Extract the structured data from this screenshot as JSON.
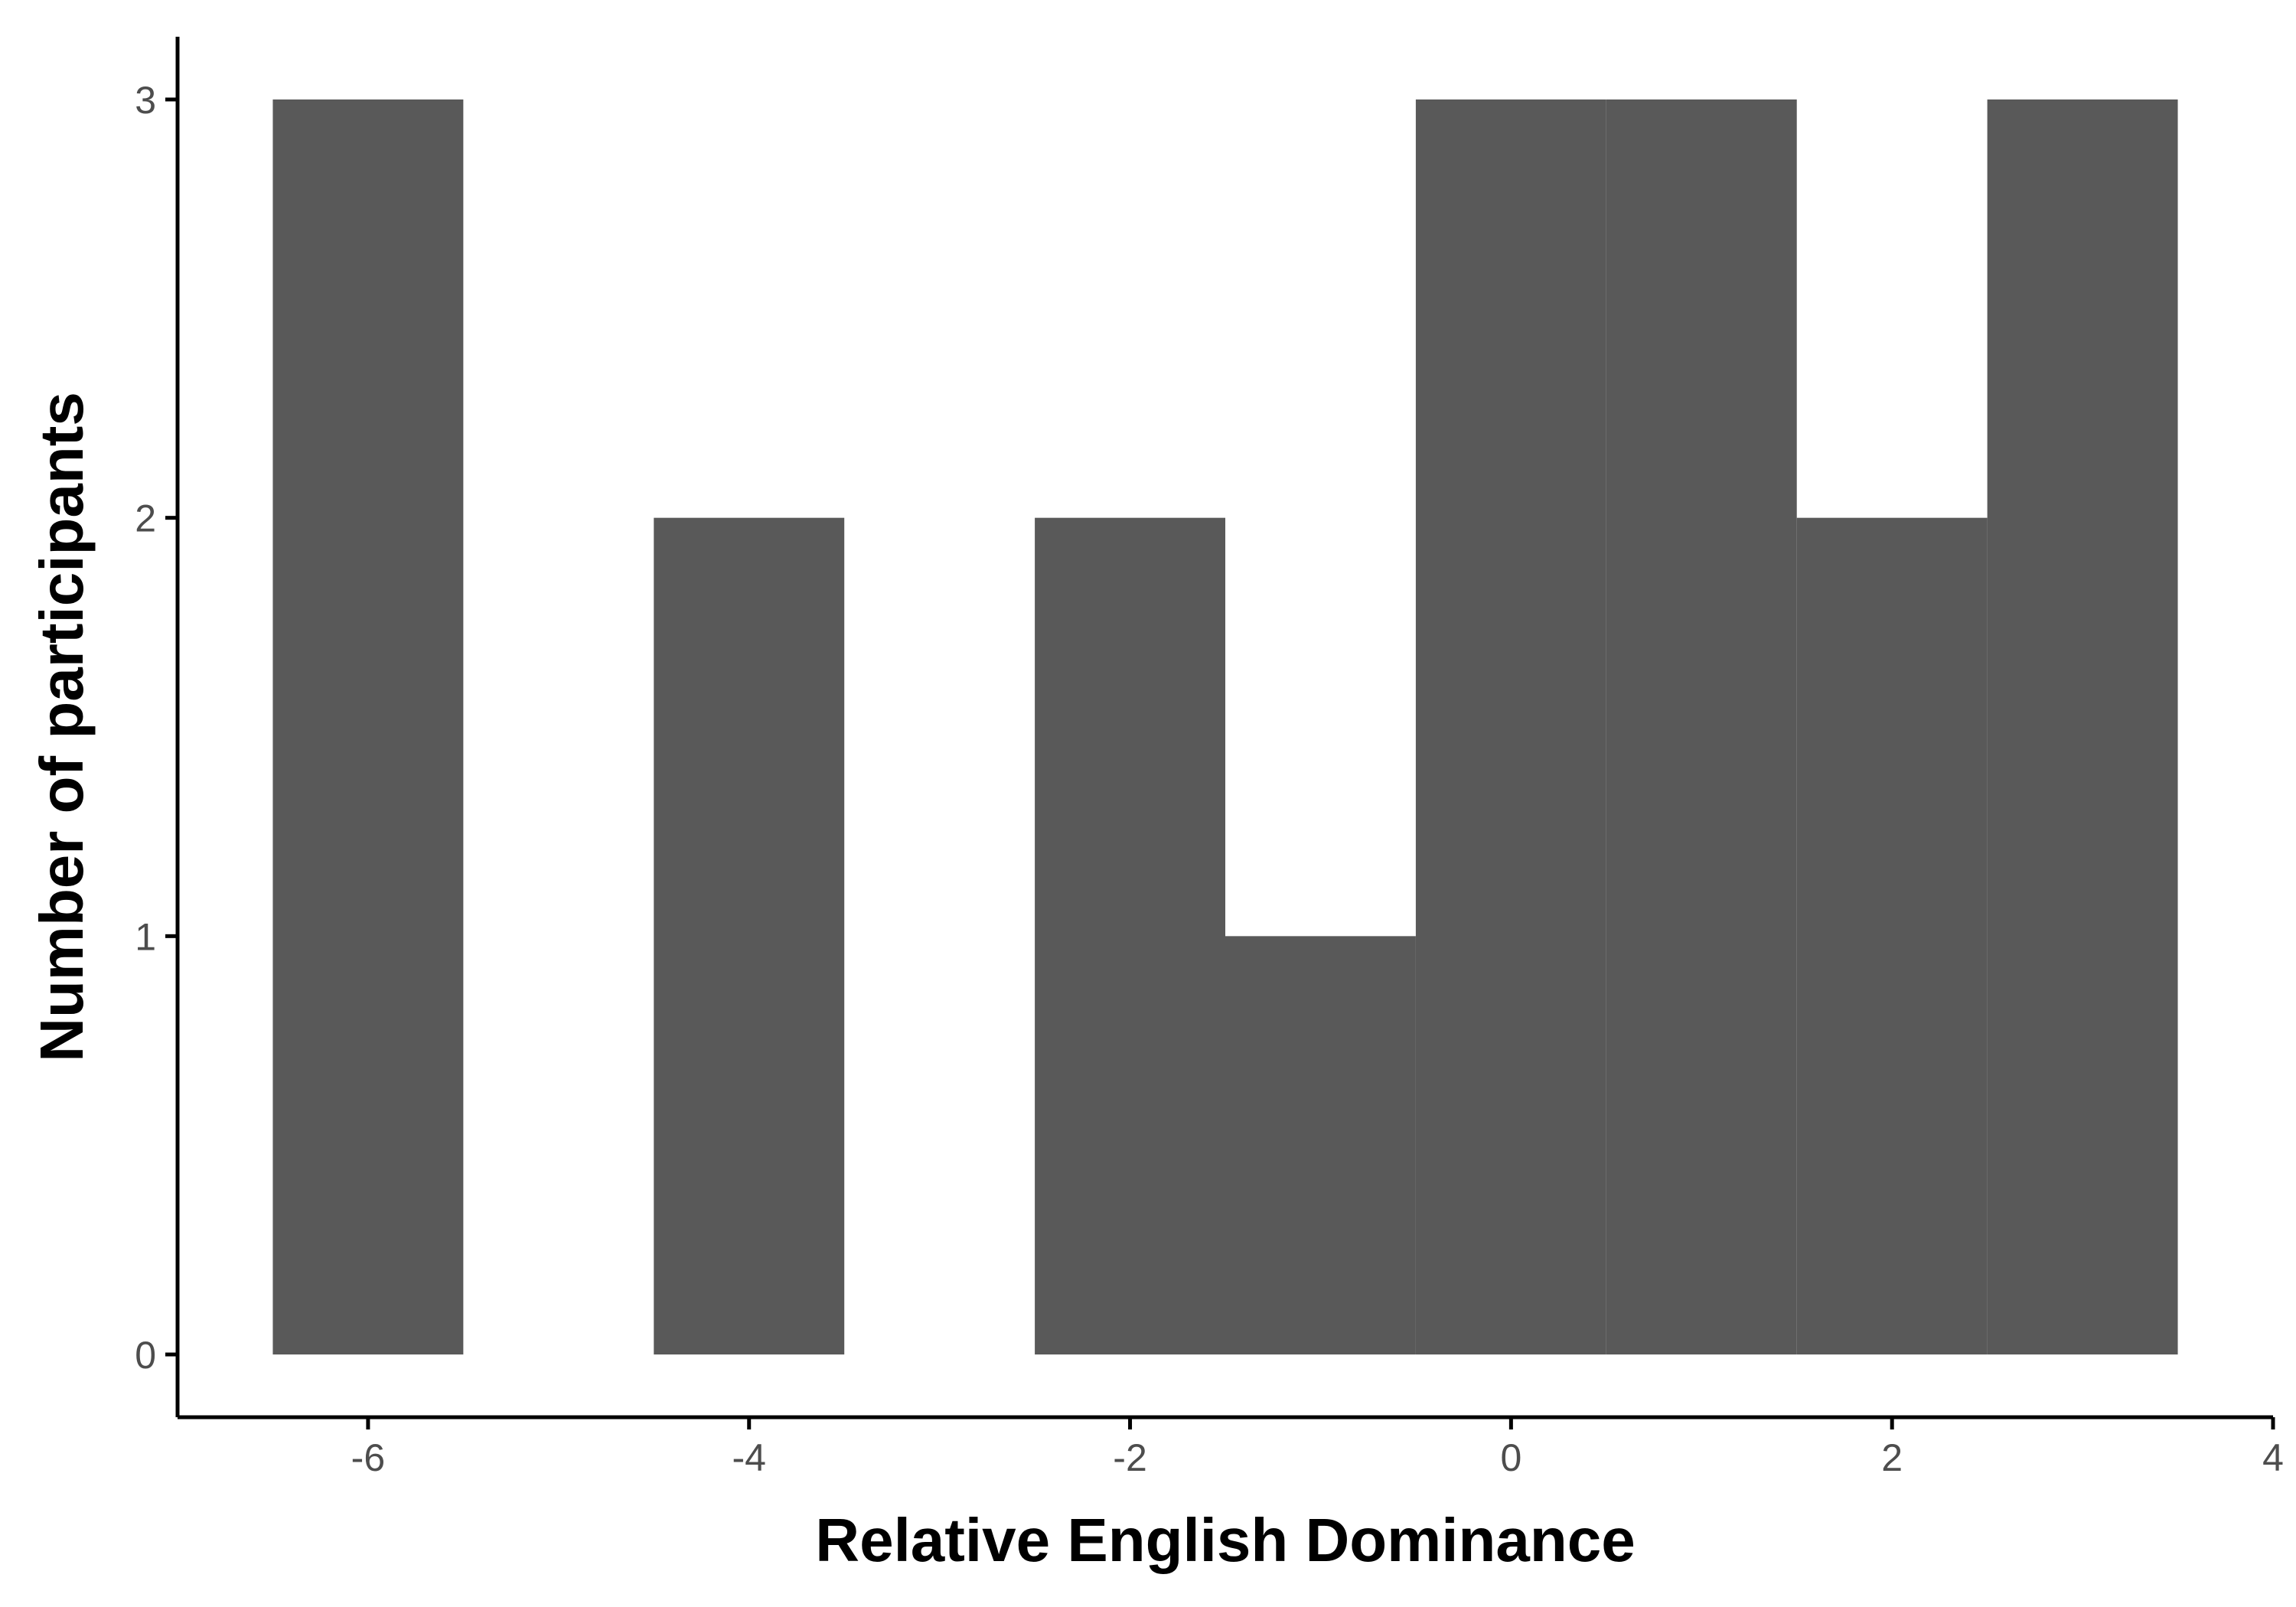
{
  "chart_data": {
    "type": "bar",
    "subtype": "histogram",
    "bin_width": 1,
    "bins": [
      {
        "x": -6,
        "count": 3
      },
      {
        "x": -5,
        "count": 0
      },
      {
        "x": -4,
        "count": 2
      },
      {
        "x": -3,
        "count": 0
      },
      {
        "x": -2,
        "count": 2
      },
      {
        "x": -1,
        "count": 1
      },
      {
        "x": 0,
        "count": 3
      },
      {
        "x": 1,
        "count": 3
      },
      {
        "x": 2,
        "count": 2
      },
      {
        "x": 3,
        "count": 3
      }
    ],
    "xlabel": "Relative English Dominance",
    "ylabel": "Number of participants",
    "xlim": [
      -7,
      4
    ],
    "ylim": [
      -0.15,
      3.15
    ],
    "x_ticks": [
      -6,
      -4,
      -2,
      0,
      2,
      4
    ],
    "x_tick_labels": [
      "-6",
      "-4",
      "-2",
      "0",
      "2",
      "4"
    ],
    "y_ticks": [
      0,
      1,
      2,
      3
    ],
    "y_tick_labels": [
      "0",
      "1",
      "2",
      "3"
    ],
    "bar_color": "#595959",
    "grid": false,
    "legend": "none"
  }
}
